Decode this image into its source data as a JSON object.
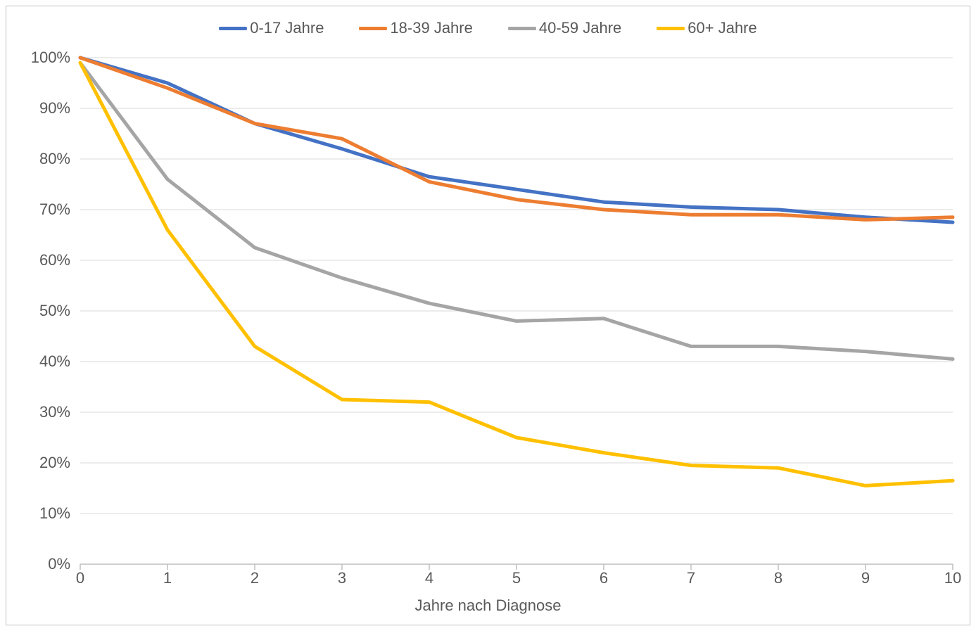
{
  "chart": {
    "type": "line",
    "background_color": "#ffffff",
    "border_color": "#bfbfbf",
    "grid_color": "#d9d9d9",
    "axis_line_color": "#bfbfbf",
    "tick_color": "#bfbfbf",
    "text_color": "#595959",
    "font_family": "Segoe UI, Arial, sans-serif",
    "label_fontsize": 22,
    "line_width": 5,
    "x_axis": {
      "title": "Jahre nach Diagnose",
      "min": 0,
      "max": 10,
      "ticks": [
        0,
        1,
        2,
        3,
        4,
        5,
        6,
        7,
        8,
        9,
        10
      ],
      "tick_labels": [
        "0",
        "1",
        "2",
        "3",
        "4",
        "5",
        "6",
        "7",
        "8",
        "9",
        "10"
      ]
    },
    "y_axis": {
      "min": 0,
      "max": 100,
      "ticks": [
        0,
        10,
        20,
        30,
        40,
        50,
        60,
        70,
        80,
        90,
        100
      ],
      "tick_labels": [
        "0%",
        "10%",
        "20%",
        "30%",
        "40%",
        "50%",
        "60%",
        "70%",
        "80%",
        "90%",
        "100%"
      ]
    },
    "series": [
      {
        "name": "0-17 Jahre",
        "color": "#4472c4",
        "x": [
          0,
          1,
          2,
          3,
          4,
          5,
          6,
          7,
          8,
          9,
          10
        ],
        "y": [
          100,
          95,
          87,
          82,
          76.5,
          74,
          71.5,
          70.5,
          70,
          68.5,
          67.5
        ]
      },
      {
        "name": "18-39 Jahre",
        "color": "#ed7d31",
        "x": [
          0,
          1,
          2,
          3,
          4,
          5,
          6,
          7,
          8,
          9,
          10
        ],
        "y": [
          100,
          94,
          87,
          84,
          75.5,
          72,
          70,
          69,
          69,
          68,
          68.5
        ]
      },
      {
        "name": "40-59 Jahre",
        "color": "#a5a5a5",
        "x": [
          0,
          1,
          2,
          3,
          4,
          5,
          6,
          7,
          8,
          9,
          10
        ],
        "y": [
          99,
          76,
          62.5,
          56.5,
          51.5,
          48,
          48.5,
          43,
          43,
          42,
          40.5
        ]
      },
      {
        "name": "60+ Jahre",
        "color": "#ffc000",
        "x": [
          0,
          1,
          2,
          3,
          4,
          5,
          6,
          7,
          8,
          9,
          10
        ],
        "y": [
          99,
          66,
          43,
          32.5,
          32,
          25,
          22,
          19.5,
          19,
          15.5,
          16.5
        ]
      }
    ]
  }
}
